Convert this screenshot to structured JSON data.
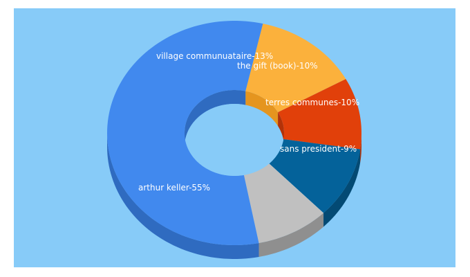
{
  "chart_data": {
    "type": "pie",
    "subtype": "donut-3d",
    "title": "",
    "slices": [
      {
        "label": "village communuataire-13%",
        "value": 13,
        "color": "#FBB13C",
        "side_color": "#E5951F"
      },
      {
        "label": "the gift (book)-10%",
        "value": 10,
        "color": "#E1400A",
        "side_color": "#B33208"
      },
      {
        "label": "terres communes-10%",
        "value": 10,
        "color": "#04629A",
        "side_color": "#034A74"
      },
      {
        "label": "sans president-9%",
        "value": 9,
        "color": "#C0C0C0",
        "side_color": "#8F8F8F"
      },
      {
        "label": "arthur keller-55%",
        "value": 55,
        "color": "#4189EE",
        "side_color": "#2F6BC0"
      }
    ],
    "background_color": "#87CBF8",
    "legend": "none"
  }
}
